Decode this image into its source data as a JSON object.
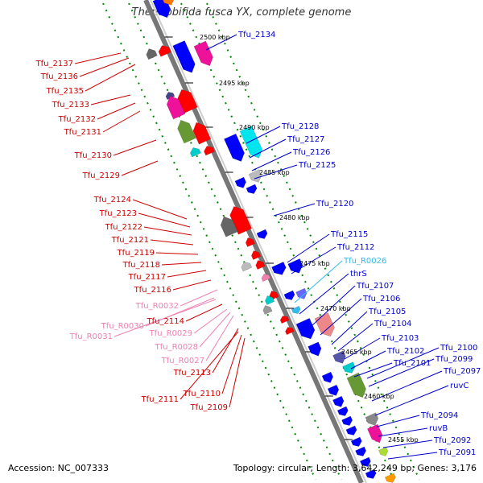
{
  "title": "Thermobifida fusca YX, complete genome",
  "footer": {
    "accession": "Accession: NC_007333",
    "topology": "Topology: circular; Length: 3,642,249 bp; Genes: 3,176"
  },
  "colors": {
    "forward_label": "#0000cc",
    "reverse_label": "#cc0000",
    "rna_reverse_label": "#f080b0",
    "rna_forward_label": "#33bbee",
    "backbone": "#888888",
    "dots": "#008800"
  },
  "scale_ticks": [
    "2500 kbp",
    "2495 kbp",
    "2490 kbp",
    "2485 kbp",
    "2480 kbp",
    "2475 kbp",
    "2470 kbp",
    "2465 kbp",
    "2460 kbp",
    "2455 kbp"
  ],
  "labels_right": [
    "Tfu_2134",
    "Tfu_2128",
    "Tfu_2127",
    "Tfu_2126",
    "Tfu_2125",
    "Tfu_2120",
    "Tfu_2115",
    "Tfu_2112",
    "Tfu_R0026",
    "thrS",
    "Tfu_2107",
    "Tfu_2106",
    "Tfu_2105",
    "Tfu_2104",
    "Tfu_2103",
    "Tfu_2102",
    "Tfu_2101",
    "Tfu_2100",
    "Tfu_2099",
    "Tfu_2097",
    "ruvC",
    "Tfu_2094",
    "ruvB",
    "Tfu_2092",
    "Tfu_2091"
  ],
  "labels_left": [
    "Tfu_2137",
    "Tfu_2136",
    "Tfu_2135",
    "Tfu_2133",
    "Tfu_2132",
    "Tfu_2131",
    "Tfu_2130",
    "Tfu_2129",
    "Tfu_2124",
    "Tfu_2123",
    "Tfu_2122",
    "Tfu_2121",
    "Tfu_2119",
    "Tfu_2118",
    "Tfu_2117",
    "Tfu_2116",
    "Tfu_R0032",
    "Tfu_2114",
    "Tfu_R0030",
    "Tfu_R0031",
    "Tfu_R0029",
    "Tfu_R0028",
    "Tfu_R0027",
    "Tfu_2113",
    "Tfu_2110",
    "Tfu_2111",
    "Tfu_2109"
  ]
}
